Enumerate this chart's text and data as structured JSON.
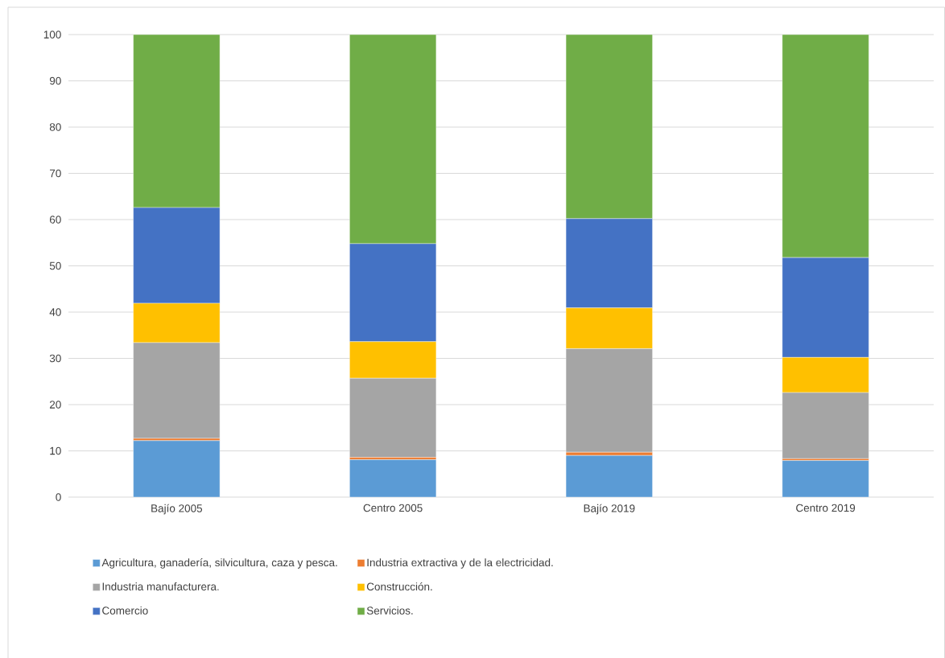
{
  "chart_data": {
    "type": "bar",
    "stacked": true,
    "categories": [
      "Bajío 2005",
      "Centro 2005",
      "Bajío 2019",
      "Centro 2019"
    ],
    "series": [
      {
        "name": "Agricultura, ganadería, silvicultura, caza y pesca.",
        "color": "#5b9bd5",
        "values": [
          12.2,
          8.1,
          9.0,
          7.9
        ]
      },
      {
        "name": "Industria extractiva y de la electricidad.",
        "color": "#ed7d31",
        "values": [
          0.5,
          0.5,
          0.7,
          0.4
        ]
      },
      {
        "name": "Industria manufacturera.",
        "color": "#a5a5a5",
        "values": [
          20.7,
          17.1,
          22.4,
          14.3
        ]
      },
      {
        "name": "Construcción.",
        "color": "#ffc000",
        "values": [
          8.5,
          7.9,
          8.8,
          7.6
        ]
      },
      {
        "name": "Comercio",
        "color": "#4472c4",
        "values": [
          20.7,
          21.2,
          19.3,
          21.6
        ]
      },
      {
        "name": "Servicios.",
        "color": "#70ad47",
        "values": [
          37.4,
          45.2,
          39.8,
          48.2
        ]
      }
    ],
    "ylim": [
      0,
      100
    ],
    "yticks": [
      0,
      10,
      20,
      30,
      40,
      50,
      60,
      70,
      80,
      90,
      100
    ],
    "grid": "y",
    "legend": "bottom"
  }
}
